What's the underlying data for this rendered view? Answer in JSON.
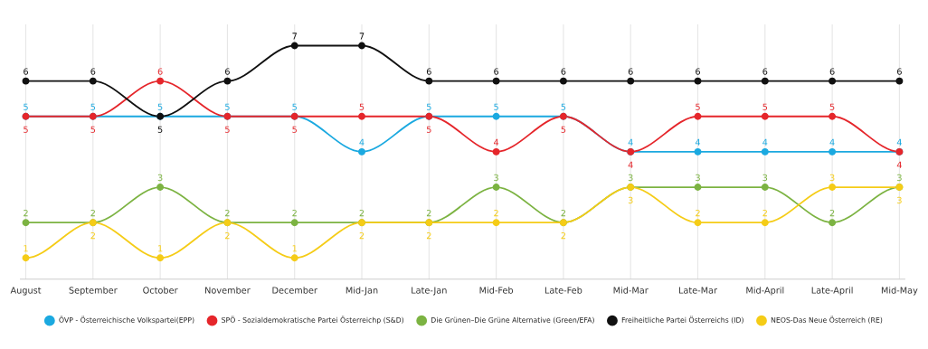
{
  "chart_data": {
    "type": "line",
    "categories": [
      "August",
      "September",
      "October",
      "November",
      "December",
      "Mid-Jan",
      "Late-Jan",
      "Mid-Feb",
      "Late-Feb",
      "Mid-Mar",
      "Late-Mar",
      "Mid-April",
      "Late-April",
      "Mid-May"
    ],
    "series": [
      {
        "name": "ÖVP - Österreichische Volkspartei(EPP)",
        "color": "#1ba9e0",
        "values": [
          5,
          5,
          5,
          5,
          5,
          4,
          5,
          5,
          5,
          4,
          4,
          4,
          4,
          4
        ]
      },
      {
        "name": "SPÖ - Sozialdemokratische Partei Österreichp (S&D)",
        "color": "#e5262b",
        "values": [
          5,
          5,
          6,
          5,
          5,
          5,
          5,
          4,
          5,
          4,
          5,
          5,
          5,
          4
        ]
      },
      {
        "name": "Die Grünen–Die Grüne Alternative (Green/EFA)",
        "color": "#7cb342",
        "values": [
          2,
          2,
          3,
          2,
          2,
          2,
          2,
          3,
          2,
          3,
          3,
          3,
          2,
          3
        ]
      },
      {
        "name": "Freiheitliche Partei Österreichs (ID)",
        "color": "#111111",
        "values": [
          6,
          6,
          5,
          6,
          7,
          7,
          6,
          6,
          6,
          6,
          6,
          6,
          6,
          6
        ]
      },
      {
        "name": "NEOS-Das Neue Österreich (RE)",
        "color": "#f5cc17",
        "values": [
          1,
          2,
          1,
          2,
          1,
          2,
          2,
          2,
          2,
          3,
          2,
          2,
          3,
          3
        ]
      }
    ],
    "data_labels": true,
    "marker": "circle",
    "line_style": "solid",
    "grid": "x",
    "legend": "bottom"
  }
}
